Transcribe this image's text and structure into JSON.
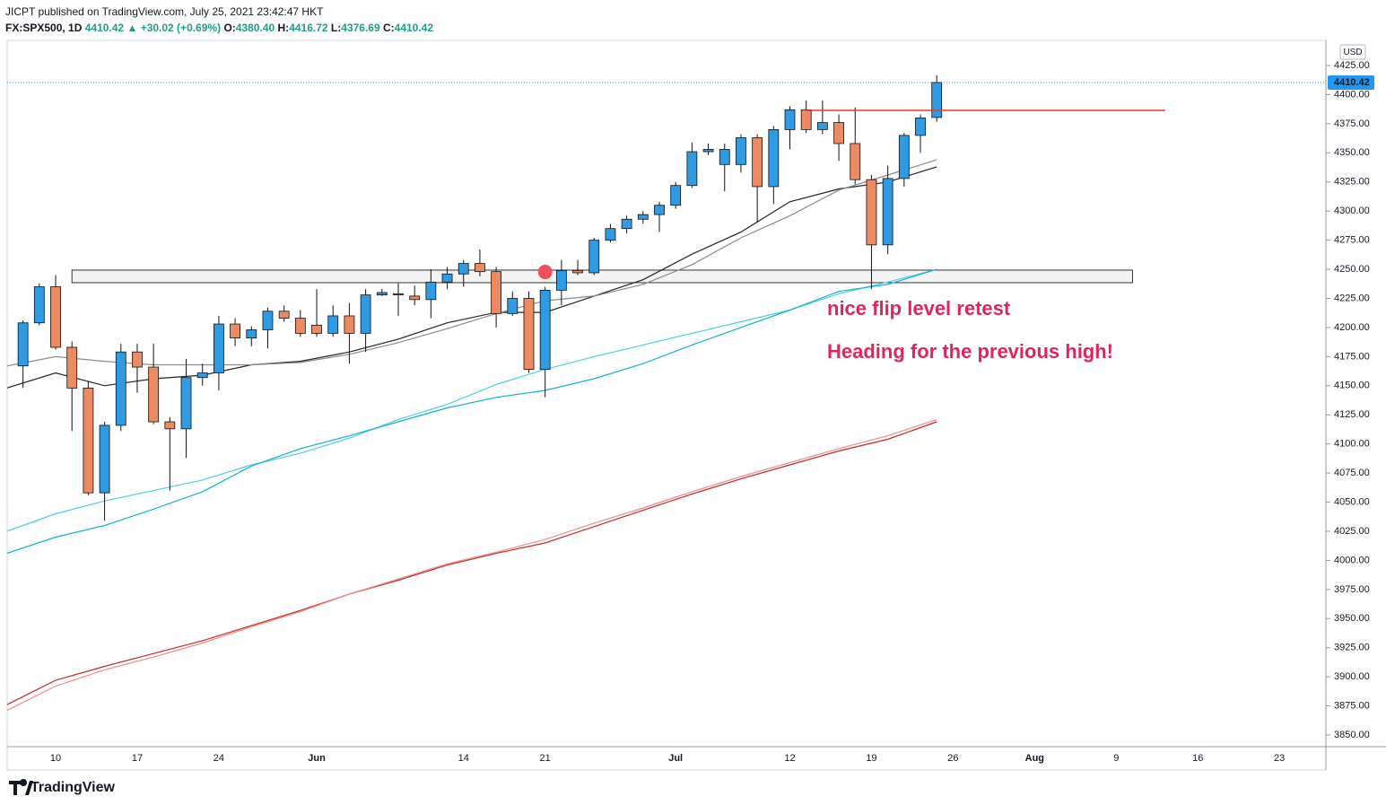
{
  "header": {
    "publisher": "JICPT published on TradingView.com, July 25, 2021 23:42:47 HKT",
    "symbol": "FX:SPX500, 1D",
    "last": "4410.42",
    "arrow": "▲",
    "change": "+30.02 (+0.69%)",
    "ohlc": [
      {
        "label": "O:",
        "value": "4380.40"
      },
      {
        "label": "H:",
        "value": "4416.72"
      },
      {
        "label": "L:",
        "value": "4376.69"
      },
      {
        "label": "C:",
        "value": "4410.42"
      }
    ]
  },
  "footer": {
    "brand": "TradingView"
  },
  "chart_data": {
    "type": "candlestick",
    "currency": "USD",
    "up_color": "#2f9be4",
    "down_color": "#ec8a62",
    "x": [
      0,
      1,
      2,
      3,
      4,
      5,
      6,
      7,
      8,
      9,
      10,
      11,
      12,
      13,
      14,
      15,
      16,
      17,
      18,
      19,
      20,
      21,
      22,
      23,
      24,
      25,
      26,
      27,
      28,
      29,
      30,
      31,
      32,
      33,
      34,
      35,
      36,
      37,
      38,
      39,
      40,
      41,
      42,
      43,
      44,
      45,
      46,
      47,
      48,
      49,
      50,
      51,
      52,
      53,
      54,
      55,
      56
    ],
    "open": [
      4167,
      4204,
      4235,
      4183,
      4148,
      4058,
      4116,
      4179,
      4166,
      4119,
      4113,
      4157,
      4161,
      4203,
      4191,
      4198,
      4214,
      4208,
      4202,
      4195,
      4210,
      4195,
      4228,
      4229,
      4227,
      4224,
      4239,
      4246,
      4255,
      4248,
      4212,
      4225,
      4164,
      4232,
      4249,
      4247,
      4275,
      4285,
      4293,
      4297,
      4305,
      4322,
      4351,
      4340,
      4340,
      4363,
      4321,
      4370,
      4387,
      4370,
      4376,
      4358,
      4327,
      4271,
      4328,
      4365,
      4380.4
    ],
    "high": [
      4206,
      4238,
      4245,
      4188,
      4154,
      4119,
      4186,
      4186,
      4186,
      4123,
      4173,
      4169,
      4210,
      4208,
      4201,
      4217,
      4219,
      4215,
      4233,
      4219,
      4221,
      4233,
      4233,
      4238,
      4236,
      4250,
      4252,
      4258,
      4267,
      4252,
      4231,
      4231,
      4235,
      4258,
      4258,
      4277,
      4289,
      4296,
      4300,
      4308,
      4325,
      4359,
      4358,
      4358,
      4366,
      4366,
      4373,
      4390,
      4395,
      4395,
      4383,
      4389,
      4331,
      4339,
      4367,
      4383,
      4416.72
    ],
    "low": [
      4148,
      4202,
      4181,
      4111,
      4056,
      4034,
      4111,
      4144,
      4117,
      4060,
      4088,
      4150,
      4146,
      4184,
      4184,
      4182,
      4205,
      4192,
      4192,
      4192,
      4169,
      4179,
      4227,
      4210,
      4219,
      4208,
      4233,
      4235,
      4244,
      4200,
      4210,
      4161,
      4140,
      4219,
      4245,
      4245,
      4273,
      4281,
      4289,
      4282,
      4302,
      4320,
      4348,
      4317,
      4333,
      4290,
      4306,
      4353,
      4367,
      4366,
      4343,
      4323,
      4233,
      4263,
      4321,
      4350,
      4376.69
    ],
    "close": [
      4204,
      4235,
      4183,
      4148,
      4058,
      4116,
      4179,
      4166,
      4119,
      4113,
      4157,
      4161,
      4203,
      4191,
      4198,
      4214,
      4208,
      4195,
      4195,
      4210,
      4195,
      4228,
      4230,
      4228,
      4224,
      4239,
      4246,
      4255,
      4248,
      4212,
      4225,
      4164,
      4232,
      4249,
      4247,
      4275,
      4285,
      4293,
      4297,
      4305,
      4322,
      4351,
      4353,
      4353,
      4363,
      4321,
      4370,
      4387,
      4370,
      4376,
      4358,
      4327,
      4271,
      4328,
      4365,
      4380,
      4410.42
    ],
    "overlays": [
      {
        "color": "#222222",
        "x": [
          -1,
          2,
          5,
          8,
          11,
          14,
          17,
          20,
          23,
          26,
          29,
          32,
          35,
          38,
          41,
          44,
          47,
          50,
          53,
          56
        ],
        "values": [
          4148,
          4161,
          4150,
          4156,
          4159,
          4168,
          4171,
          4179,
          4190,
          4204,
          4213,
          4213,
          4227,
          4241,
          4263,
          4282,
          4308,
          4319,
          4325,
          4338
        ]
      },
      {
        "color": "#8a8a8a",
        "x": [
          -1,
          2,
          5,
          8,
          11,
          14,
          17,
          20,
          23,
          26,
          29,
          32,
          35,
          38,
          41,
          44,
          47,
          50,
          53,
          56
        ],
        "values": [
          4167,
          4175,
          4171,
          4168,
          4168,
          4168,
          4170,
          4177,
          4187,
          4199,
          4212,
          4223,
          4227,
          4237,
          4254,
          4277,
          4296,
          4318,
          4331,
          4344
        ]
      },
      {
        "color": "#4dd0e1",
        "x": [
          -1,
          2,
          5,
          8,
          11,
          14,
          17,
          20,
          23,
          26,
          29,
          32,
          35,
          38,
          41,
          44,
          47,
          50,
          53,
          56
        ],
        "values": [
          4025,
          4040,
          4051,
          4060,
          4069,
          4082,
          4092,
          4105,
          4121,
          4134,
          4151,
          4164,
          4175,
          4185,
          4195,
          4205,
          4215,
          4229,
          4239,
          4250
        ]
      },
      {
        "color": "#14b3c7",
        "x": [
          -1,
          2,
          5,
          8,
          11,
          14,
          17,
          20,
          23,
          26,
          29,
          32,
          35,
          38,
          41,
          44,
          47,
          50,
          53,
          56
        ],
        "values": [
          4006,
          4020,
          4030,
          4044,
          4059,
          4081,
          4096,
          4107,
          4119,
          4131,
          4140,
          4146,
          4156,
          4169,
          4185,
          4200,
          4215,
          4231,
          4237,
          4250
        ]
      },
      {
        "color": "#c62828",
        "x": [
          -1,
          2,
          5,
          8,
          11,
          14,
          17,
          20,
          23,
          26,
          29,
          32,
          35,
          38,
          41,
          44,
          47,
          50,
          53,
          56
        ],
        "values": [
          3876,
          3897,
          3909,
          3920,
          3931,
          3944,
          3957,
          3971,
          3983,
          3996,
          4006,
          4015,
          4029,
          4043,
          4057,
          4070,
          4082,
          4094,
          4104,
          4119
        ]
      },
      {
        "color": "#f08a8a",
        "x": [
          -1,
          2,
          5,
          8,
          11,
          14,
          17,
          20,
          23,
          26,
          29,
          32,
          35,
          38,
          41,
          44,
          47,
          50,
          53,
          56
        ],
        "values": [
          3871,
          3892,
          3906,
          3917,
          3929,
          3943,
          3956,
          3971,
          3984,
          3997,
          4007,
          4018,
          4032,
          4045,
          4059,
          4072,
          4084,
          4096,
          4107,
          4121
        ]
      }
    ],
    "zone": {
      "x": [
        3,
        68
      ],
      "y": [
        4238.5,
        4249.3
      ]
    },
    "level": {
      "x": [
        48,
        70
      ],
      "y": 4386.5,
      "color": "#e53935"
    },
    "marker": {
      "x": 32,
      "y": 4247.7,
      "color": "#ef4f5c"
    },
    "last_price": {
      "value": 4410.42,
      "label": "4410.42",
      "color": "#2196f3"
    },
    "annotations": [
      "nice flip level retest",
      "Heading for the previous high!"
    ],
    "xlim": [
      -0.97,
      79.85
    ],
    "ylim": [
      3840,
      4446.6
    ],
    "xticks": [
      {
        "value": 2,
        "label": "10"
      },
      {
        "value": 7,
        "label": "17"
      },
      {
        "value": 12,
        "label": "24"
      },
      {
        "value": 18,
        "label": "Jun"
      },
      {
        "value": 27,
        "label": "14"
      },
      {
        "value": 32,
        "label": "21"
      },
      {
        "value": 40,
        "label": "Jul"
      },
      {
        "value": 47,
        "label": "12"
      },
      {
        "value": 52,
        "label": "19"
      },
      {
        "value": 57,
        "label": "26"
      },
      {
        "value": 62,
        "label": "Aug"
      },
      {
        "value": 67,
        "label": "9"
      },
      {
        "value": 72,
        "label": "16"
      },
      {
        "value": 77,
        "label": "23"
      }
    ],
    "yticks": [
      {
        "value": 4425,
        "label": "4425.00"
      },
      {
        "value": 4400,
        "label": "4400.00"
      },
      {
        "value": 4375,
        "label": "4375.00"
      },
      {
        "value": 4350,
        "label": "4350.00"
      },
      {
        "value": 4325,
        "label": "4325.00"
      },
      {
        "value": 4300,
        "label": "4300.00"
      },
      {
        "value": 4275,
        "label": "4275.00"
      },
      {
        "value": 4250,
        "label": "4250.00"
      },
      {
        "value": 4225,
        "label": "4225.00"
      },
      {
        "value": 4200,
        "label": "4200.00"
      },
      {
        "value": 4175,
        "label": "4175.00"
      },
      {
        "value": 4150,
        "label": "4150.00"
      },
      {
        "value": 4125,
        "label": "4125.00"
      },
      {
        "value": 4100,
        "label": "4100.00"
      },
      {
        "value": 4075,
        "label": "4075.00"
      },
      {
        "value": 4050,
        "label": "4050.00"
      },
      {
        "value": 4025,
        "label": "4025.00"
      },
      {
        "value": 4000,
        "label": "4000.00"
      },
      {
        "value": 3975,
        "label": "3975.00"
      },
      {
        "value": 3950,
        "label": "3950.00"
      },
      {
        "value": 3925,
        "label": "3925.00"
      },
      {
        "value": 3900,
        "label": "3900.00"
      },
      {
        "value": 3875,
        "label": "3875.00"
      },
      {
        "value": 3850,
        "label": "3850.00"
      }
    ],
    "grid": false
  }
}
